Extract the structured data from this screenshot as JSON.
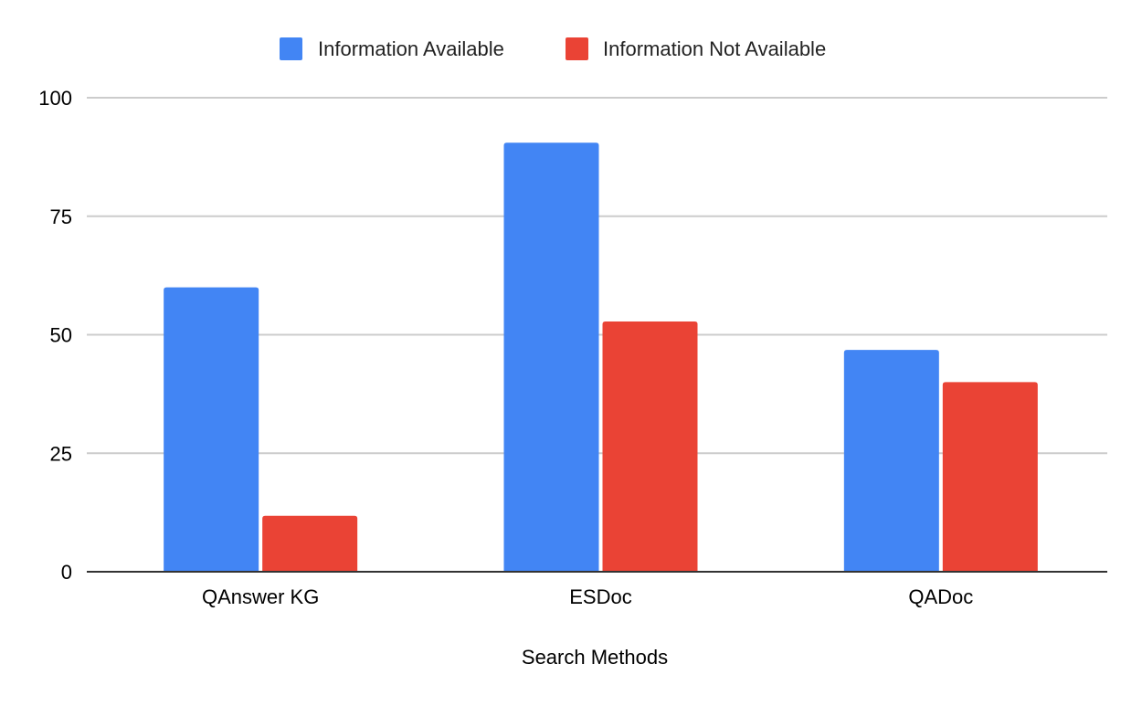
{
  "chart_data": {
    "type": "bar",
    "title": "",
    "xlabel": "Search Methods",
    "ylabel": "",
    "categories": [
      "QAnswer KG",
      "ESDoc",
      "QADoc"
    ],
    "series": [
      {
        "name": "Information Available",
        "color": "#4285F4",
        "values": [
          60,
          90.5,
          46.8
        ]
      },
      {
        "name": "Information Not Available",
        "color": "#EA4335",
        "values": [
          11.8,
          52.8,
          40
        ]
      }
    ],
    "ylim": [
      0,
      100
    ],
    "yticks": [
      0,
      25,
      50,
      75,
      100
    ],
    "grid": true,
    "legend_position": "top-center"
  }
}
